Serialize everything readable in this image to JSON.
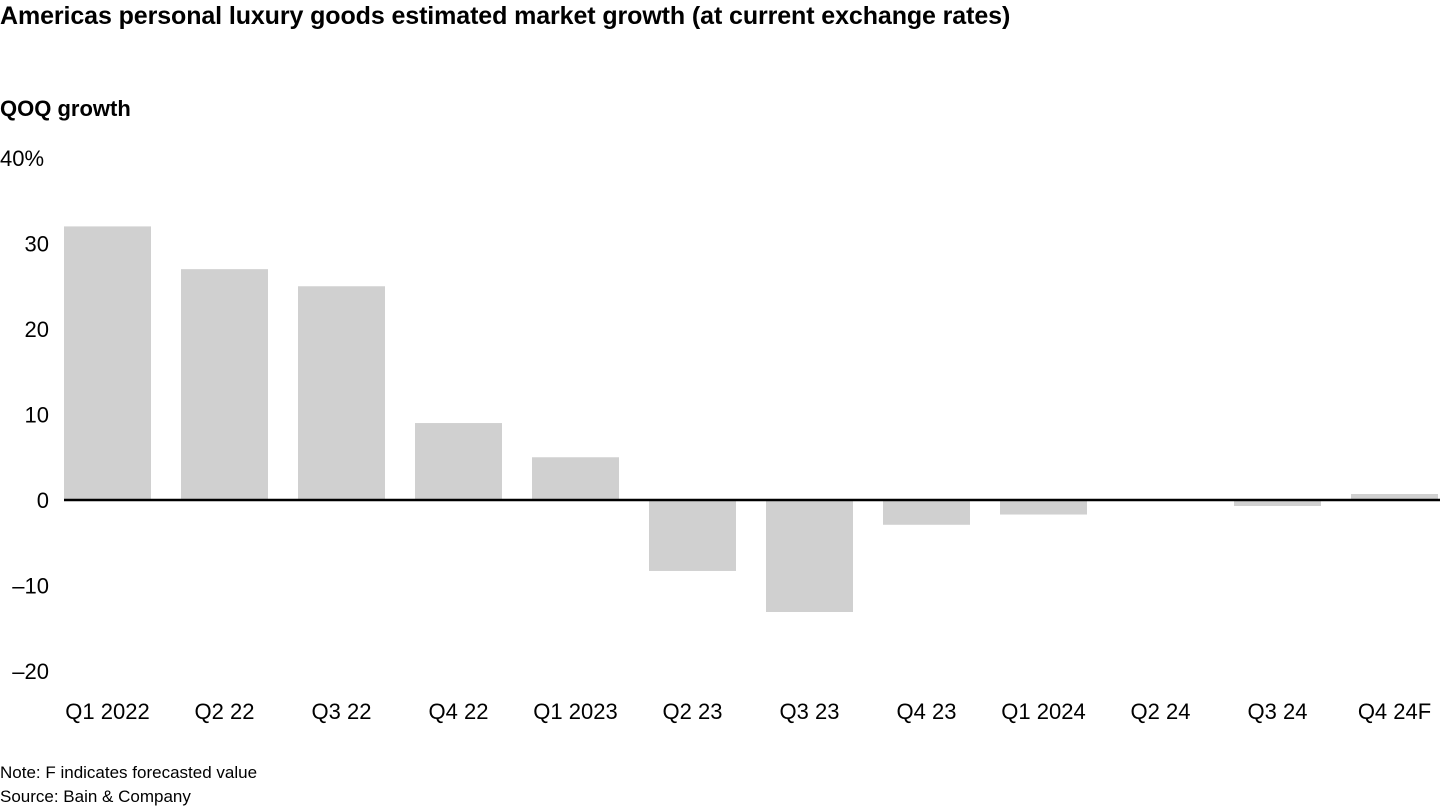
{
  "chart_data": {
    "type": "bar",
    "title": "Americas personal luxury goods estimated market growth (at current exchange rates)",
    "ylabel": "QOQ growth",
    "xlabel": "",
    "categories": [
      "Q1 2022",
      "Q2 22",
      "Q3 22",
      "Q4 22",
      "Q1 2023",
      "Q2 23",
      "Q3 23",
      "Q4 23",
      "Q1 2024",
      "Q2 24",
      "Q3 24",
      "Q4 24F"
    ],
    "values": [
      32,
      27,
      25,
      9,
      5,
      -8.3,
      -13.1,
      -2.9,
      -1.7,
      0,
      -0.7,
      0.7
    ],
    "ylim": [
      -20,
      40
    ],
    "yticks": [
      40,
      30,
      20,
      10,
      0,
      -10,
      -20
    ],
    "ytick_labels": [
      "40%",
      "30",
      "20",
      "10",
      "0",
      "–10",
      "–20"
    ],
    "grid": false,
    "bar_color": "#d0d0d0",
    "zero_line_color": "#000000",
    "legend": "none"
  },
  "footer": {
    "note": "Note: F indicates forecasted value",
    "source": "Source: Bain & Company"
  }
}
